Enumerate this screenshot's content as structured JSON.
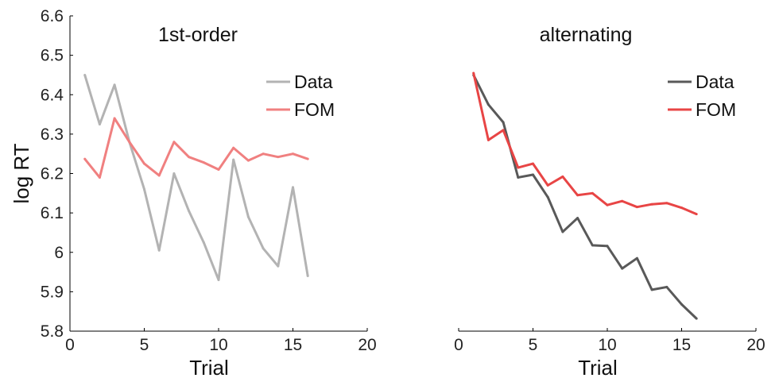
{
  "chart_data": [
    {
      "type": "line",
      "title": "1st-order",
      "xlabel": "Trial",
      "ylabel": "log RT",
      "xlim": [
        0,
        20
      ],
      "ylim": [
        5.8,
        6.6
      ],
      "xticks": [
        "0",
        "5",
        "10",
        "15",
        "20"
      ],
      "yticks": [
        "5.8",
        "5.9",
        "6",
        "6.1",
        "6.2",
        "6.3",
        "6.4",
        "6.5",
        "6.6"
      ],
      "legend": "top-right",
      "grid": false,
      "x": [
        1,
        2,
        3,
        4,
        5,
        6,
        7,
        8,
        9,
        10,
        11,
        12,
        13,
        14,
        15,
        16
      ],
      "series": [
        {
          "name": "Data",
          "color": "#b3b3b3",
          "values": [
            6.45,
            6.325,
            6.425,
            6.28,
            6.16,
            6.005,
            6.2,
            6.105,
            6.025,
            5.93,
            6.235,
            6.09,
            6.01,
            5.965,
            6.165,
            5.94
          ]
        },
        {
          "name": "FOM",
          "color": "#f08080",
          "values": [
            6.237,
            6.19,
            6.34,
            6.28,
            6.225,
            6.195,
            6.28,
            6.242,
            6.228,
            6.21,
            6.265,
            6.233,
            6.25,
            6.242,
            6.25,
            6.237
          ]
        }
      ]
    },
    {
      "type": "line",
      "title": "alternating",
      "xlabel": "Trial",
      "ylabel": "",
      "xlim": [
        0,
        20
      ],
      "ylim": [
        5.8,
        6.6
      ],
      "xticks": [
        "0",
        "5",
        "10",
        "15",
        "20"
      ],
      "legend": "top-right",
      "grid": false,
      "x": [
        1,
        2,
        3,
        4,
        5,
        6,
        7,
        8,
        9,
        10,
        11,
        12,
        13,
        14,
        15,
        16
      ],
      "series": [
        {
          "name": "Data",
          "color": "#595959",
          "values": [
            6.45,
            6.375,
            6.33,
            6.19,
            6.197,
            6.14,
            6.052,
            6.087,
            6.018,
            6.016,
            5.959,
            5.985,
            5.905,
            5.912,
            5.868,
            5.832
          ]
        },
        {
          "name": "FOM",
          "color": "#e84545",
          "values": [
            6.455,
            6.285,
            6.31,
            6.215,
            6.225,
            6.17,
            6.192,
            6.145,
            6.15,
            6.12,
            6.13,
            6.115,
            6.122,
            6.125,
            6.113,
            6.097
          ]
        }
      ]
    }
  ]
}
